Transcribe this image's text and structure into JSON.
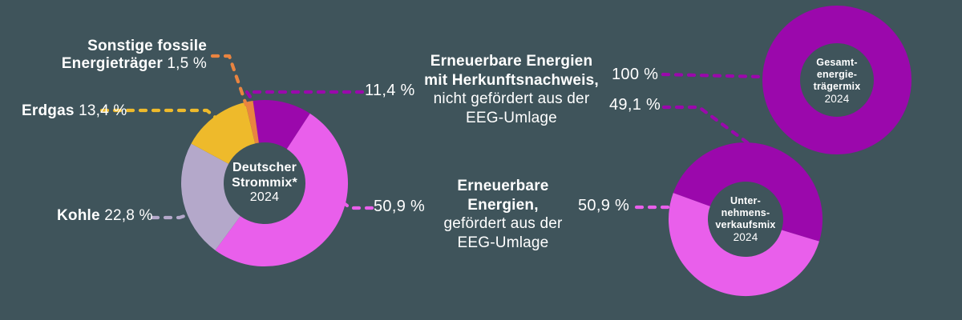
{
  "colors": {
    "background": "#3f545b",
    "text": "#ffffff"
  },
  "chart_data": [
    {
      "type": "donut",
      "name": "deutscher-strommix",
      "center_label_lines": [
        "Deutscher",
        "Strommix*"
      ],
      "center_year": "2024",
      "unit": "%",
      "segments": [
        {
          "label": "Erneuerbare Energien mit Herkunftsnachweis, nicht gefördert aus der EEG-Umlage",
          "value_pct": 11.4,
          "value_display": "11,4 %",
          "color": "#9b08ac"
        },
        {
          "label": "Erneuerbare Energien, gefördert aus der EEG-Umlage",
          "value_pct": 50.9,
          "value_display": "50,9 %",
          "color": "#e95feb"
        },
        {
          "label": "Kohle",
          "value_pct": 22.8,
          "value_display": "22,8 %",
          "color": "#b4a8ca"
        },
        {
          "label": "Erdgas",
          "value_pct": 13.4,
          "value_display": "13,4 %",
          "color": "#eeba2b"
        },
        {
          "label": "Sonstige fossile Energieträger",
          "value_pct": 1.5,
          "value_display": "1,5 %",
          "color": "#e98440"
        }
      ]
    },
    {
      "type": "donut",
      "name": "gesamtenergietraegermix",
      "center_label_lines": [
        "Gesamt-",
        "energie-",
        "trägermix"
      ],
      "center_year": "2024",
      "unit": "%",
      "segments": [
        {
          "label": "Gesamtenergieträgermix",
          "value_pct": 100,
          "value_display": "100 %",
          "color": "#9b08ac"
        }
      ]
    },
    {
      "type": "donut",
      "name": "unternehmensverkaufsmix",
      "center_label_lines": [
        "Unter-",
        "nehmens-",
        "verkaufsmix"
      ],
      "center_year": "2024",
      "unit": "%",
      "segments": [
        {
          "label": "Erneuerbare Energien mit Herkunftsnachweis, nicht gefördert aus der EEG-Umlage",
          "value_pct": 49.1,
          "value_display": "49,1 %",
          "color": "#9b08ac"
        },
        {
          "label": "Erneuerbare Energien, gefördert aus der EEG-Umlage",
          "value_pct": 50.9,
          "value_display": "50,9 %",
          "color": "#e95feb"
        }
      ]
    }
  ],
  "callouts": {
    "sonstige_line1": "Sonstige fossile",
    "sonstige_line2": "Energieträger"
  },
  "annotations": {
    "hkn": {
      "line1": "Erneuerbare Energien",
      "line2": "mit Herkunftsnachweis,",
      "line3": "nicht gefördert aus der",
      "line4": "EEG-Umlage"
    },
    "eeg": {
      "line1": "Erneuerbare",
      "line2": "Energien,",
      "line3": "gefördert aus der",
      "line4": "EEG-Umlage"
    }
  }
}
